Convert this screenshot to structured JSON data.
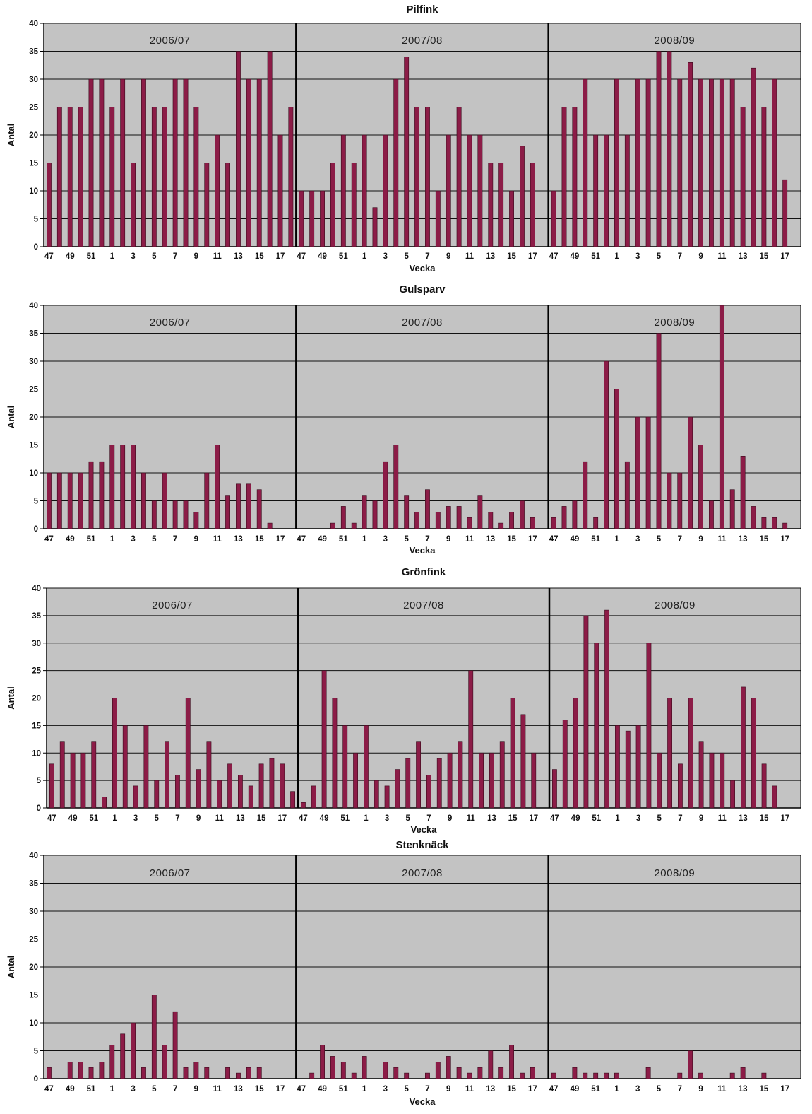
{
  "colors": {
    "bar": "#8c1c47",
    "plot_bg": "#c3c3c3",
    "grid": "#111111",
    "divider": "#000000"
  },
  "chart_data": [
    {
      "type": "bar",
      "title": "Pilfink",
      "xlabel": "Vecka",
      "ylabel": "Antal",
      "ylim": [
        0,
        40
      ],
      "yticks": [
        0,
        5,
        10,
        15,
        20,
        25,
        30,
        35,
        40
      ],
      "xtick_labels": [
        "47",
        "49",
        "51",
        "1",
        "3",
        "5",
        "7",
        "9",
        "11",
        "13",
        "15",
        "17"
      ],
      "grid": true,
      "seasons": [
        {
          "name": "2006/07",
          "values": [
            15,
            25,
            25,
            25,
            30,
            30,
            25,
            30,
            15,
            30,
            25,
            25,
            30,
            30,
            25,
            15,
            20,
            15,
            35,
            30,
            30,
            35,
            20,
            25
          ]
        },
        {
          "name": "2007/08",
          "values": [
            10,
            10,
            10,
            15,
            20,
            15,
            20,
            7,
            20,
            30,
            34,
            25,
            25,
            10,
            20,
            25,
            20,
            20,
            15,
            15,
            10,
            18,
            15,
            null
          ]
        },
        {
          "name": "2008/09",
          "values": [
            10,
            25,
            25,
            30,
            20,
            20,
            30,
            20,
            30,
            30,
            35,
            35,
            30,
            33,
            30,
            30,
            30,
            30,
            25,
            32,
            25,
            30,
            12,
            null
          ]
        }
      ]
    },
    {
      "type": "bar",
      "title": "Gulsparv",
      "xlabel": "Vecka",
      "ylabel": "Antal",
      "ylim": [
        0,
        40
      ],
      "yticks": [
        0,
        5,
        10,
        15,
        20,
        25,
        30,
        35,
        40
      ],
      "xtick_labels": [
        "47",
        "49",
        "51",
        "1",
        "3",
        "5",
        "7",
        "9",
        "11",
        "13",
        "15",
        "17"
      ],
      "grid": true,
      "seasons": [
        {
          "name": "2006/07",
          "values": [
            10,
            10,
            10,
            10,
            12,
            12,
            15,
            15,
            15,
            10,
            5,
            10,
            5,
            5,
            3,
            10,
            15,
            6,
            8,
            8,
            7,
            1,
            null,
            null
          ]
        },
        {
          "name": "2007/08",
          "values": [
            null,
            null,
            null,
            1,
            4,
            1,
            6,
            5,
            12,
            15,
            6,
            3,
            7,
            3,
            4,
            4,
            2,
            6,
            3,
            1,
            3,
            5,
            2,
            null
          ]
        },
        {
          "name": "2008/09",
          "values": [
            2,
            4,
            5,
            12,
            2,
            30,
            25,
            12,
            20,
            20,
            35,
            10,
            10,
            20,
            15,
            5,
            40,
            7,
            13,
            4,
            2,
            2,
            1,
            null
          ]
        }
      ]
    },
    {
      "type": "bar",
      "title": "Grönfink",
      "xlabel": "Vecka",
      "ylabel": "Antal",
      "ylim": [
        0,
        40
      ],
      "yticks": [
        0,
        5,
        10,
        15,
        20,
        25,
        30,
        35,
        40
      ],
      "xtick_labels": [
        "47",
        "49",
        "51",
        "1",
        "3",
        "5",
        "7",
        "9",
        "11",
        "13",
        "15",
        "17"
      ],
      "grid": true,
      "seasons": [
        {
          "name": "2006/07",
          "values": [
            8,
            12,
            10,
            10,
            12,
            2,
            20,
            15,
            4,
            15,
            5,
            12,
            6,
            20,
            7,
            12,
            5,
            8,
            6,
            4,
            8,
            9,
            8,
            3
          ]
        },
        {
          "name": "2007/08",
          "values": [
            1,
            4,
            25,
            20,
            15,
            10,
            15,
            5,
            4,
            7,
            9,
            12,
            6,
            9,
            10,
            12,
            25,
            10,
            10,
            12,
            20,
            17,
            10,
            null
          ]
        },
        {
          "name": "2008/09",
          "values": [
            7,
            16,
            20,
            35,
            30,
            36,
            15,
            14,
            15,
            30,
            10,
            20,
            8,
            20,
            12,
            10,
            10,
            5,
            22,
            20,
            8,
            4,
            null,
            null
          ]
        }
      ]
    },
    {
      "type": "bar",
      "title": "Stenknäck",
      "xlabel": "Vecka",
      "ylabel": "Antal",
      "ylim": [
        0,
        40
      ],
      "yticks": [
        0,
        5,
        10,
        15,
        20,
        25,
        30,
        35,
        40
      ],
      "xtick_labels": [
        "47",
        "49",
        "51",
        "1",
        "3",
        "5",
        "7",
        "9",
        "11",
        "13",
        "15",
        "17"
      ],
      "grid": true,
      "seasons": [
        {
          "name": "2006/07",
          "values": [
            2,
            null,
            3,
            3,
            2,
            3,
            6,
            8,
            10,
            2,
            15,
            6,
            12,
            2,
            3,
            2,
            null,
            2,
            1,
            2,
            2,
            null,
            null,
            null
          ]
        },
        {
          "name": "2007/08",
          "values": [
            null,
            1,
            6,
            4,
            3,
            1,
            4,
            null,
            3,
            2,
            1,
            null,
            1,
            3,
            4,
            2,
            1,
            2,
            5,
            2,
            6,
            1,
            2,
            null
          ]
        },
        {
          "name": "2008/09",
          "values": [
            1,
            null,
            2,
            1,
            1,
            1,
            1,
            null,
            null,
            2,
            null,
            null,
            1,
            5,
            1,
            null,
            null,
            1,
            2,
            null,
            1,
            null,
            null,
            null
          ]
        }
      ]
    }
  ]
}
